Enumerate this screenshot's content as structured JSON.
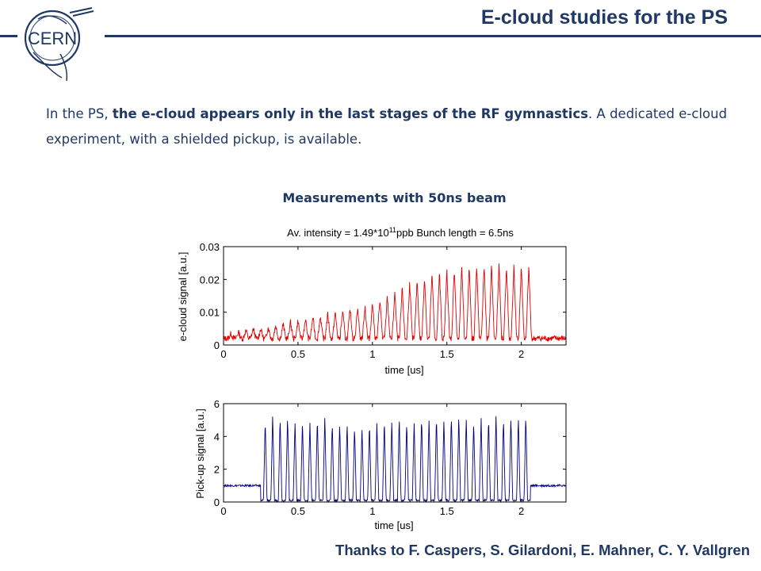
{
  "header": {
    "title": "E-cloud studies for the PS",
    "logo_text": "CERN"
  },
  "intro": {
    "p1_a": "In the PS, ",
    "p1_b": "the e-cloud appears only  in the last stages of the RF gymnastics",
    "p1_c": ". A dedicated e-cloud experiment, with a shielded pickup, is available."
  },
  "figure_title": "Measurements with 50ns beam",
  "acknowledgement": "Thanks to F. Caspers, S. Gilardoni, E. Mahner, C. Y. Vallgren",
  "colors": {
    "heading": "#1f3864",
    "ecloud_trace": "#e00000",
    "pickup_trace": "#000080"
  },
  "chart_data": [
    {
      "type": "line",
      "title_prefix": "Av. intensity = 1.49*10",
      "title_exponent": "11",
      "title_suffix": "ppb Bunch length = 6.5ns",
      "xlabel": "time [us]",
      "ylabel": "e-cloud signal [a.u.]",
      "xlim": [
        0,
        2.3
      ],
      "ylim": [
        0,
        0.03
      ],
      "xticks": [
        "0",
        "0.5",
        "1",
        "1.5",
        "2"
      ],
      "yticks": [
        "0",
        "0.01",
        "0.02",
        "0.03"
      ],
      "series": [
        {
          "baseline": 0.002,
          "bunch_spacing_us": 0.05,
          "pulses": [
            {
              "t": 0.05,
              "peak": 0.0035
            },
            {
              "t": 0.1,
              "peak": 0.004
            },
            {
              "t": 0.15,
              "peak": 0.0045
            },
            {
              "t": 0.2,
              "peak": 0.005
            },
            {
              "t": 0.25,
              "peak": 0.005
            },
            {
              "t": 0.3,
              "peak": 0.0055
            },
            {
              "t": 0.35,
              "peak": 0.006
            },
            {
              "t": 0.4,
              "peak": 0.0065
            },
            {
              "t": 0.45,
              "peak": 0.007
            },
            {
              "t": 0.5,
              "peak": 0.0075
            },
            {
              "t": 0.55,
              "peak": 0.008
            },
            {
              "t": 0.6,
              "peak": 0.0085
            },
            {
              "t": 0.65,
              "peak": 0.009
            },
            {
              "t": 0.7,
              "peak": 0.0095
            },
            {
              "t": 0.75,
              "peak": 0.01
            },
            {
              "t": 0.8,
              "peak": 0.0105
            },
            {
              "t": 0.85,
              "peak": 0.011
            },
            {
              "t": 0.9,
              "peak": 0.0115
            },
            {
              "t": 0.95,
              "peak": 0.012
            },
            {
              "t": 1.0,
              "peak": 0.013
            },
            {
              "t": 1.05,
              "peak": 0.014
            },
            {
              "t": 1.1,
              "peak": 0.015
            },
            {
              "t": 1.15,
              "peak": 0.016
            },
            {
              "t": 1.2,
              "peak": 0.0175
            },
            {
              "t": 1.25,
              "peak": 0.019
            },
            {
              "t": 1.3,
              "peak": 0.02
            },
            {
              "t": 1.35,
              "peak": 0.021
            },
            {
              "t": 1.4,
              "peak": 0.022
            },
            {
              "t": 1.45,
              "peak": 0.0225
            },
            {
              "t": 1.5,
              "peak": 0.023
            },
            {
              "t": 1.55,
              "peak": 0.0235
            },
            {
              "t": 1.6,
              "peak": 0.024
            },
            {
              "t": 1.65,
              "peak": 0.024
            },
            {
              "t": 1.7,
              "peak": 0.024
            },
            {
              "t": 1.75,
              "peak": 0.0245
            },
            {
              "t": 1.8,
              "peak": 0.0245
            },
            {
              "t": 1.85,
              "peak": 0.0245
            },
            {
              "t": 1.9,
              "peak": 0.024
            },
            {
              "t": 1.95,
              "peak": 0.024
            },
            {
              "t": 2.0,
              "peak": 0.0245
            },
            {
              "t": 2.05,
              "peak": 0.024
            }
          ]
        }
      ]
    },
    {
      "type": "line",
      "xlabel": "time [us]",
      "ylabel": "Pick-up signal [a.u.]",
      "xlim": [
        0,
        2.3
      ],
      "ylim": [
        0,
        6
      ],
      "xticks": [
        "0",
        "0.5",
        "1",
        "1.5",
        "2"
      ],
      "yticks": [
        "0",
        "2",
        "4",
        "6"
      ],
      "series": [
        {
          "baseline": 1.0,
          "gap_level": 0.1,
          "pulses": [
            {
              "t": 0.28,
              "peak": 5.0
            },
            {
              "t": 0.33,
              "peak": 5.3
            },
            {
              "t": 0.38,
              "peak": 5.2
            },
            {
              "t": 0.43,
              "peak": 5.3
            },
            {
              "t": 0.48,
              "peak": 5.0
            },
            {
              "t": 0.53,
              "peak": 5.0
            },
            {
              "t": 0.58,
              "peak": 4.9
            },
            {
              "t": 0.63,
              "peak": 5.1
            },
            {
              "t": 0.68,
              "peak": 5.2
            },
            {
              "t": 0.73,
              "peak": 4.9
            },
            {
              "t": 0.78,
              "peak": 4.8
            },
            {
              "t": 0.83,
              "peak": 4.8
            },
            {
              "t": 0.88,
              "peak": 4.6
            },
            {
              "t": 0.93,
              "peak": 4.5
            },
            {
              "t": 0.98,
              "peak": 4.8
            },
            {
              "t": 1.03,
              "peak": 4.9
            },
            {
              "t": 1.08,
              "peak": 5.0
            },
            {
              "t": 1.13,
              "peak": 5.0
            },
            {
              "t": 1.18,
              "peak": 5.2
            },
            {
              "t": 1.23,
              "peak": 4.9
            },
            {
              "t": 1.28,
              "peak": 4.9
            },
            {
              "t": 1.33,
              "peak": 5.2
            },
            {
              "t": 1.38,
              "peak": 5.0
            },
            {
              "t": 1.43,
              "peak": 5.2
            },
            {
              "t": 1.48,
              "peak": 5.1
            },
            {
              "t": 1.53,
              "peak": 5.3
            },
            {
              "t": 1.58,
              "peak": 5.3
            },
            {
              "t": 1.63,
              "peak": 5.2
            },
            {
              "t": 1.68,
              "peak": 5.0
            },
            {
              "t": 1.73,
              "peak": 5.2
            },
            {
              "t": 1.78,
              "peak": 5.2
            },
            {
              "t": 1.83,
              "peak": 5.3
            },
            {
              "t": 1.88,
              "peak": 5.1
            },
            {
              "t": 1.93,
              "peak": 5.2
            },
            {
              "t": 1.98,
              "peak": 5.2
            },
            {
              "t": 2.03,
              "peak": 5.3
            }
          ]
        }
      ]
    }
  ]
}
